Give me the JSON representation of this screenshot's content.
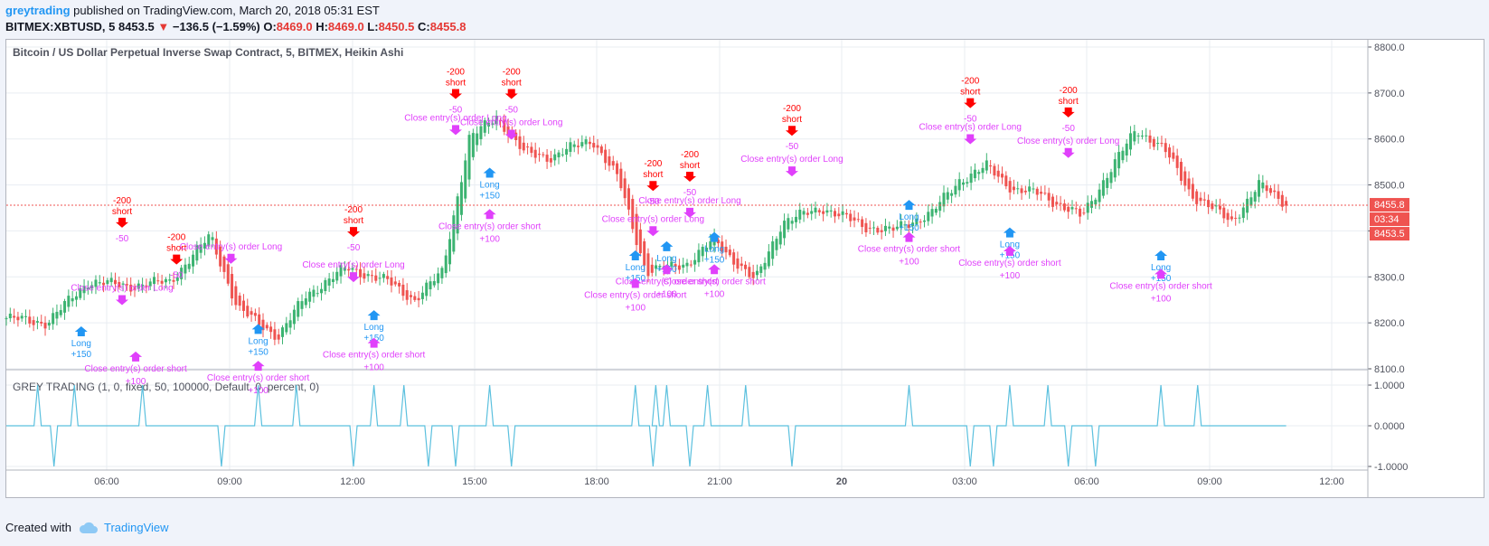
{
  "header": {
    "username": "greytrading",
    "published_text": "published on TradingView.com, March 20, 2018 05:31 EST",
    "symbol": "BITMEX:XBTUSD, 5",
    "last": "8453.5",
    "change": "−136.5 (−1.59%)",
    "o_label": "O:",
    "o_value": "8469.0",
    "h_label": "H:",
    "h_value": "8469.0",
    "l_label": "L:",
    "l_value": "8450.5",
    "c_label": "C:",
    "c_value": "8455.8"
  },
  "footer": {
    "created_with": "Created with",
    "brand": "TradingView"
  },
  "colors": {
    "up": "#26a69a",
    "up_candle": "#3cb371",
    "down": "#ef5350",
    "short": "#ff0000",
    "long": "#2196f3",
    "close": "#e040fb",
    "indicator": "#5bc0de",
    "grid": "#e9edf2"
  },
  "chart_data": [
    {
      "type": "candlestick",
      "title": "Bitcoin / US Dollar Perpetual Inverse Swap Contract, 5, BITMEX, Heikin Ashi",
      "ylim": [
        8100,
        8800
      ],
      "y_ticks": [
        "8800.0",
        "8700.0",
        "8600.0",
        "8500.0",
        "8400.0",
        "8300.0",
        "8200.0",
        "8100.0"
      ],
      "x_ticks": [
        "06:00",
        "09:00",
        "12:00",
        "15:00",
        "18:00",
        "21:00",
        "20",
        "03:00",
        "06:00",
        "09:00",
        "12:00"
      ],
      "price_tags": [
        "8455.8",
        "03:34",
        "8453.5"
      ],
      "price_line": 8455.8,
      "path_x": [
        0.0,
        0.03,
        0.06,
        0.09,
        0.12,
        0.15,
        0.17,
        0.2,
        0.22,
        0.25,
        0.28,
        0.3,
        0.32,
        0.34,
        0.36,
        0.38,
        0.4,
        0.43,
        0.45,
        0.47,
        0.5,
        0.52,
        0.55,
        0.57,
        0.6,
        0.63,
        0.65,
        0.68,
        0.7,
        0.72,
        0.74,
        0.76,
        0.79,
        0.81,
        0.83,
        0.85,
        0.87,
        0.9,
        0.92,
        0.94
      ],
      "path_y": [
        8210,
        8200,
        8290,
        8280,
        8290,
        8390,
        8230,
        8170,
        8260,
        8320,
        8290,
        8250,
        8310,
        8600,
        8650,
        8570,
        8560,
        8600,
        8510,
        8310,
        8330,
        8380,
        8290,
        8420,
        8450,
        8410,
        8400,
        8440,
        8510,
        8540,
        8490,
        8480,
        8430,
        8530,
        8620,
        8580,
        8480,
        8420,
        8500,
        8460
      ],
      "trades": [
        {
          "kind": "short",
          "text": "short",
          "value": "-200"
        },
        {
          "kind": "close",
          "text": "Close entry(s) order Long",
          "value": "-50"
        },
        {
          "kind": "long",
          "text": "Long",
          "value": "+150"
        },
        {
          "kind": "close_short",
          "text": "Close entry(s) order short",
          "value": "+100"
        }
      ],
      "trade_events": [
        {
          "kind": "short",
          "t": 0.085,
          "p": 8460,
          "label": "short",
          "value": "-200"
        },
        {
          "kind": "close",
          "t": 0.085,
          "p": 8270,
          "label": "Close entry(s) order Long",
          "value": "-50"
        },
        {
          "kind": "long",
          "t": 0.055,
          "p": 8165,
          "label": "Long",
          "value": "+150"
        },
        {
          "kind": "close_short",
          "t": 0.095,
          "p": 8110,
          "label": "Close entry(s) order short",
          "value": "+100"
        },
        {
          "kind": "short",
          "t": 0.125,
          "p": 8380,
          "label": "short",
          "value": "-200"
        },
        {
          "kind": "close",
          "t": 0.165,
          "p": 8360,
          "label": "Close entry(s) order Long",
          "value": "-50"
        },
        {
          "kind": "long",
          "t": 0.185,
          "p": 8170,
          "label": "Long",
          "value": "+150"
        },
        {
          "kind": "close_short",
          "t": 0.185,
          "p": 8090,
          "label": "Close entry(s) order short",
          "value": "+100"
        },
        {
          "kind": "short",
          "t": 0.255,
          "p": 8440,
          "label": "short",
          "value": "-200"
        },
        {
          "kind": "close",
          "t": 0.255,
          "p": 8320,
          "label": "Close entry(s) order Long",
          "value": "-50"
        },
        {
          "kind": "long",
          "t": 0.27,
          "p": 8200,
          "label": "Long",
          "value": "+150"
        },
        {
          "kind": "close_short",
          "t": 0.27,
          "p": 8140,
          "label": "Close entry(s) order short",
          "value": "+100"
        },
        {
          "kind": "short",
          "t": 0.33,
          "p": 8740,
          "label": "short",
          "value": "-200"
        },
        {
          "kind": "close",
          "t": 0.33,
          "p": 8640,
          "label": "Close entry(s) order Long",
          "value": "-50"
        },
        {
          "kind": "long",
          "t": 0.355,
          "p": 8510,
          "label": "Long",
          "value": "+150"
        },
        {
          "kind": "close_short",
          "t": 0.355,
          "p": 8420,
          "label": "Close entry(s) order short",
          "value": "+100"
        },
        {
          "kind": "short",
          "t": 0.371,
          "p": 8740,
          "label": "short",
          "value": "-200"
        },
        {
          "kind": "close",
          "t": 0.371,
          "p": 8630,
          "label": "Close entry(s) order Long",
          "value": "-50"
        },
        {
          "kind": "short",
          "t": 0.475,
          "p": 8540,
          "label": "short",
          "value": "-200"
        },
        {
          "kind": "close",
          "t": 0.475,
          "p": 8420,
          "label": "Close entry(s) order Long",
          "value": "-50"
        },
        {
          "kind": "long",
          "t": 0.462,
          "p": 8330,
          "label": "Long",
          "value": "+150"
        },
        {
          "kind": "close_short",
          "t": 0.462,
          "p": 8270,
          "label": "Close entry(s) order short",
          "value": "+100"
        },
        {
          "kind": "long",
          "t": 0.485,
          "p": 8350,
          "label": "Long",
          "value": "+150"
        },
        {
          "kind": "close_short",
          "t": 0.485,
          "p": 8300,
          "label": "Close entry(s) order short",
          "value": "+100"
        },
        {
          "kind": "short",
          "t": 0.502,
          "p": 8560,
          "label": "short",
          "value": "-200"
        },
        {
          "kind": "close",
          "t": 0.502,
          "p": 8460,
          "label": "Close entry(s) order Long",
          "value": "-50"
        },
        {
          "kind": "long",
          "t": 0.52,
          "p": 8370,
          "label": "Long",
          "value": "+150"
        },
        {
          "kind": "close_short",
          "t": 0.52,
          "p": 8300,
          "label": "Close entry(s) order short",
          "value": "+100"
        },
        {
          "kind": "short",
          "t": 0.577,
          "p": 8660,
          "label": "short",
          "value": "-200"
        },
        {
          "kind": "close",
          "t": 0.577,
          "p": 8550,
          "label": "Close entry(s) order Long",
          "value": "-50"
        },
        {
          "kind": "long",
          "t": 0.663,
          "p": 8440,
          "label": "Long",
          "value": "+150"
        },
        {
          "kind": "close_short",
          "t": 0.663,
          "p": 8370,
          "label": "Close entry(s) order short",
          "value": "+100"
        },
        {
          "kind": "short",
          "t": 0.708,
          "p": 8720,
          "label": "short",
          "value": "-200"
        },
        {
          "kind": "close",
          "t": 0.708,
          "p": 8620,
          "label": "Close entry(s) order Long",
          "value": "-50"
        },
        {
          "kind": "long",
          "t": 0.737,
          "p": 8380,
          "label": "Long",
          "value": "+150"
        },
        {
          "kind": "close_short",
          "t": 0.737,
          "p": 8340,
          "label": "Close entry(s) order short",
          "value": "+100"
        },
        {
          "kind": "short",
          "t": 0.78,
          "p": 8700,
          "label": "short",
          "value": "-200"
        },
        {
          "kind": "close",
          "t": 0.78,
          "p": 8590,
          "label": "Close entry(s) order Long",
          "value": "-50"
        },
        {
          "kind": "long",
          "t": 0.848,
          "p": 8330,
          "label": "Long",
          "value": "+150"
        },
        {
          "kind": "close_short",
          "t": 0.848,
          "p": 8290,
          "label": "Close entry(s) order short",
          "value": "+100"
        }
      ]
    },
    {
      "type": "line",
      "title": "GREY TRADING (1, 0, fixed, 50, 100000, Default, 0, percent, 0)",
      "ylim": [
        -1,
        1
      ],
      "y_ticks": [
        "1.0000",
        "0.0000",
        "-1.0000"
      ],
      "series": [
        {
          "name": "",
          "spikes_up_t": [
            0.023,
            0.05,
            0.1,
            0.185,
            0.213,
            0.27,
            0.292,
            0.355,
            0.462,
            0.477,
            0.485,
            0.515,
            0.543,
            0.663,
            0.737,
            0.765,
            0.848,
            0.875
          ],
          "spikes_down_t": [
            0.035,
            0.158,
            0.255,
            0.31,
            0.33,
            0.371,
            0.475,
            0.502,
            0.577,
            0.708,
            0.725,
            0.78,
            0.8
          ]
        }
      ]
    }
  ]
}
